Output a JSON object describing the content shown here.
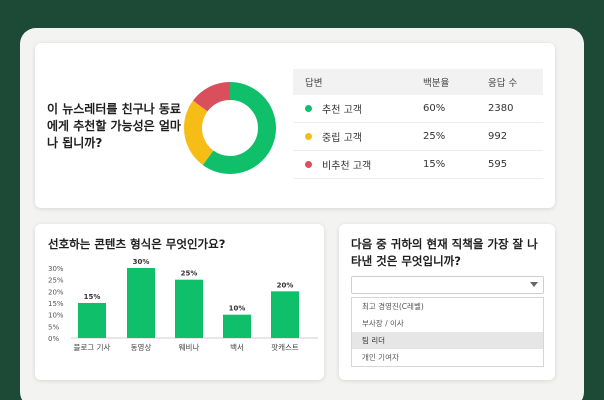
{
  "theme": {
    "accent_green": "#0fbf69",
    "yellow": "#f6bd16",
    "red": "#d94f5c",
    "frame_bg": "#1d4a36"
  },
  "survey_card": {
    "question": "이 뉴스레터를 친구나 동료에게 추천할 가능성은 얼마나 됩니까?",
    "table": {
      "headers": [
        "답변",
        "백분율",
        "응답 수"
      ],
      "rows": [
        {
          "label": "추천 고객",
          "percent": "60%",
          "count": "2380",
          "color": "#0fbf69",
          "share": 60
        },
        {
          "label": "중립 고객",
          "percent": "25%",
          "count": "992",
          "color": "#f6bd16",
          "share": 25
        },
        {
          "label": "비추천 고객",
          "percent": "15%",
          "count": "595",
          "color": "#d94f5c",
          "share": 15
        }
      ]
    }
  },
  "bar_card": {
    "title": "선호하는 콘텐츠 형식은 무엇인가요?"
  },
  "chart_data": {
    "type": "bar",
    "categories": [
      "블로그 기사",
      "동영상",
      "웨비나",
      "백서",
      "팟캐스트"
    ],
    "values": [
      15,
      30,
      25,
      10,
      20
    ],
    "value_labels": [
      "15%",
      "30%",
      "25%",
      "10%",
      "20%"
    ],
    "ticks": [
      "0%",
      "5%",
      "10%",
      "15%",
      "20%",
      "25%",
      "30%"
    ],
    "ylim": [
      0,
      30
    ],
    "grid": false,
    "color": "#0fbf69"
  },
  "select_card": {
    "question": "다음 중 귀하의 현재 직책을 가장 잘 나타낸 것은 무엇입니까?",
    "selected_value": "",
    "options": [
      "최고 경영진(C레벨)",
      "부사장 / 이사",
      "팀 리더",
      "개인 기여자"
    ],
    "highlighted_index": 2
  }
}
